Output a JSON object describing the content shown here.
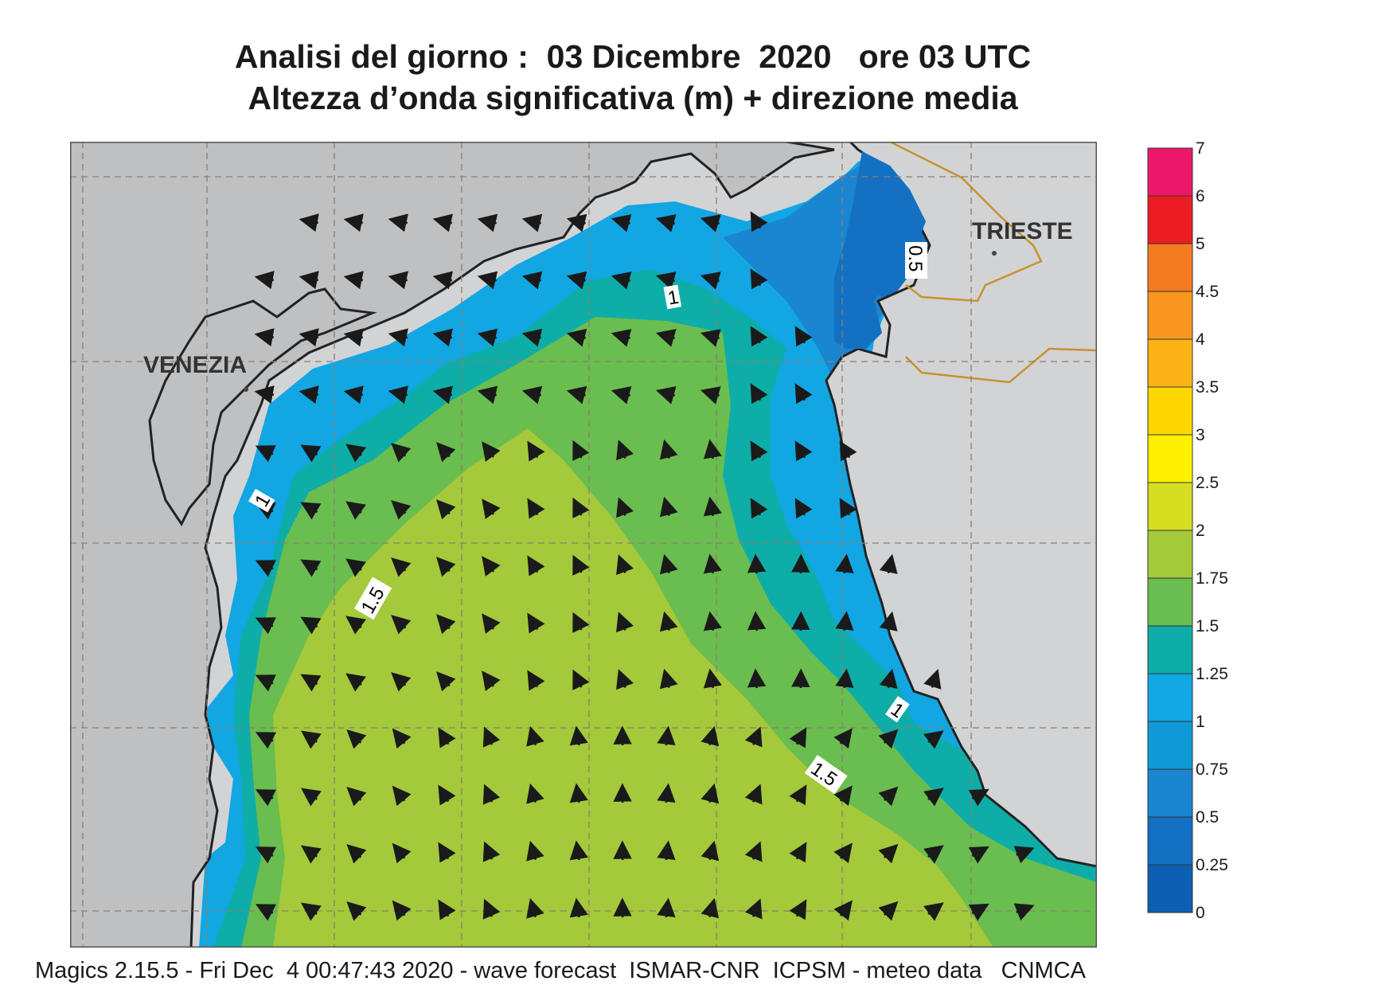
{
  "title_line1": "Analisi del giorno :  03 Dicembre  2020   ore 03 UTC",
  "title_line2": "Altezza d’onda significativa (m) + direzione media",
  "cities": [
    {
      "name": "VENEZIA"
    },
    {
      "name": "TRIESTE"
    }
  ],
  "contour_labels": [
    "1",
    "0.5",
    "1",
    "1.5",
    "1",
    "1.5"
  ],
  "legend": {
    "colors": [
      "#0d5fb3",
      "#1470c2",
      "#1a85d1",
      "#0f99d6",
      "#12a6e3",
      "#0fada8",
      "#6abd4f",
      "#a4c93b",
      "#d6de21",
      "#fff000",
      "#ffd700",
      "#fcb317",
      "#f8971d",
      "#f47a22",
      "#ec1c24",
      "#ec1769"
    ],
    "labels": [
      "0",
      "0.25",
      "0.5",
      "0.75",
      "1",
      "1.25",
      "1.5",
      "1.75",
      "2",
      "2.5",
      "3",
      "3.5",
      "4",
      "4.5",
      "5",
      "6",
      "7"
    ]
  },
  "footer": "Magics 2.15.5 - Fri Dec  4 00:47:43 2020 - wave forecast  ISMAR-CNR  ICPSM - meteo data   CNMCA"
}
